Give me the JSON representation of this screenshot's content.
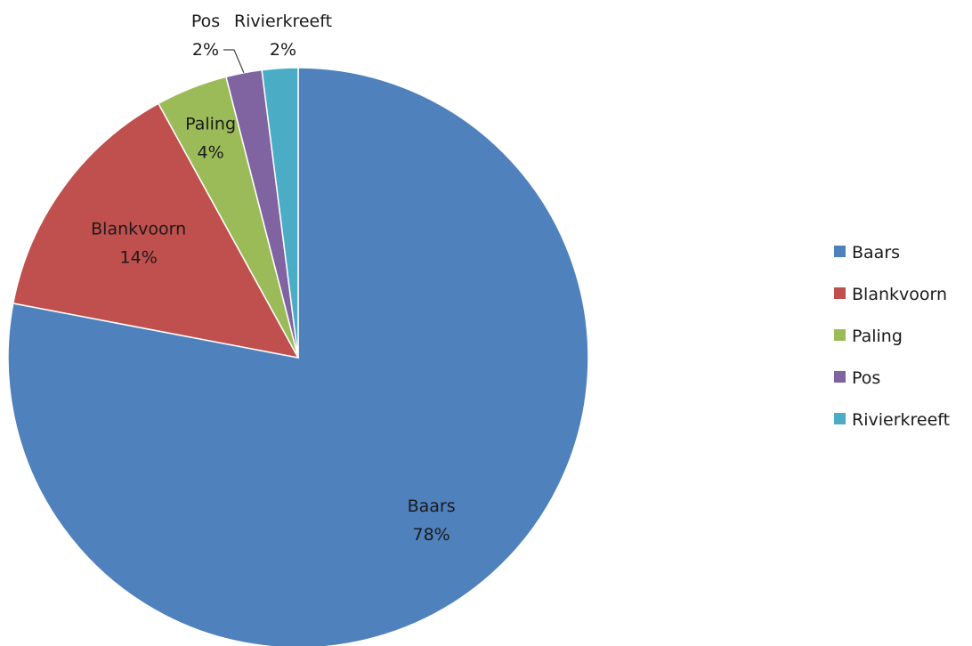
{
  "chart_data": {
    "type": "pie",
    "title": "",
    "categories": [
      "Baars",
      "Blankvoorn",
      "Paling",
      "Pos",
      "Rivierkreeft"
    ],
    "values": [
      78,
      14,
      4,
      2,
      2
    ],
    "data_labels": [
      "78%",
      "14%",
      "4%",
      "2%",
      "2%"
    ],
    "colors": [
      "#4F81BD",
      "#C0504D",
      "#9BBB59",
      "#8064A2",
      "#4BACC6"
    ],
    "start_angle_deg": 0,
    "direction": "clockwise",
    "legend": {
      "position": "right",
      "entries": [
        "Baars",
        "Blankvoorn",
        "Paling",
        "Pos",
        "Rivierkreeft"
      ]
    }
  }
}
